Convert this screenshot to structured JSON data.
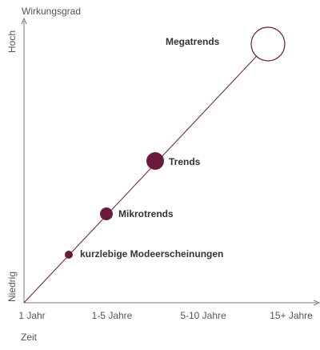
{
  "axes": {
    "y_title": "Wirkungsgrad",
    "y_high": "Hoch",
    "y_low": "Niedrig",
    "x_title": "Zeit",
    "x_labels": [
      "1 Jahr",
      "1-5 Jahre",
      "5-10 Jahre",
      "15+ Jahre"
    ]
  },
  "nodes": [
    {
      "label": "kurzlebige Modeerscheinungen"
    },
    {
      "label": "Mikrotrends"
    },
    {
      "label": "Trends"
    },
    {
      "label": "Megatrends"
    }
  ]
}
